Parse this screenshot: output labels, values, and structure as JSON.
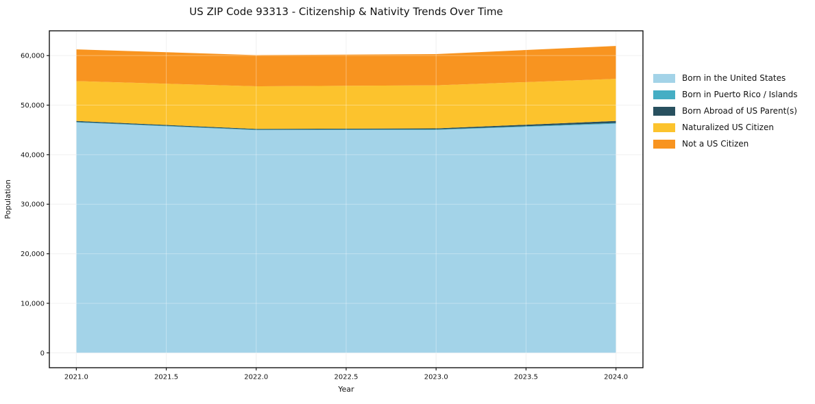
{
  "chart_data": {
    "type": "area",
    "stacked": true,
    "title": "US ZIP Code 93313 - Citizenship & Nativity Trends Over Time",
    "xlabel": "Year",
    "ylabel": "Population",
    "x": [
      2021,
      2022,
      2023,
      2024
    ],
    "series": [
      {
        "name": "Born in the United States",
        "color": "#a3d3e8",
        "values": [
          46500,
          44950,
          45000,
          46250
        ]
      },
      {
        "name": "Born in Puerto Rico / Islands",
        "color": "#45aec4",
        "values": [
          100,
          100,
          100,
          150
        ]
      },
      {
        "name": "Born Abroad of US Parent(s)",
        "color": "#28505f",
        "values": [
          200,
          150,
          200,
          400
        ]
      },
      {
        "name": "Naturalized US Citizen",
        "color": "#fcc32d",
        "values": [
          8050,
          8600,
          8700,
          8500
        ]
      },
      {
        "name": "Not a US Citizen",
        "color": "#f89420",
        "values": [
          6400,
          6300,
          6300,
          6650
        ]
      }
    ],
    "xlim": [
      2020.85,
      2024.15
    ],
    "ylim": [
      -3000,
      65000
    ],
    "xticks": [
      2021.0,
      2021.5,
      2022.0,
      2022.5,
      2023.0,
      2023.5,
      2024.0
    ],
    "xtick_labels": [
      "2021.0",
      "2021.5",
      "2022.0",
      "2022.5",
      "2023.0",
      "2023.5",
      "2024.0"
    ],
    "yticks": [
      0,
      10000,
      20000,
      30000,
      40000,
      50000,
      60000
    ],
    "ytick_labels": [
      "0",
      "10,000",
      "20,000",
      "30,000",
      "40,000",
      "50,000",
      "60,000"
    ],
    "grid": true,
    "legend_position": "right-outside"
  }
}
